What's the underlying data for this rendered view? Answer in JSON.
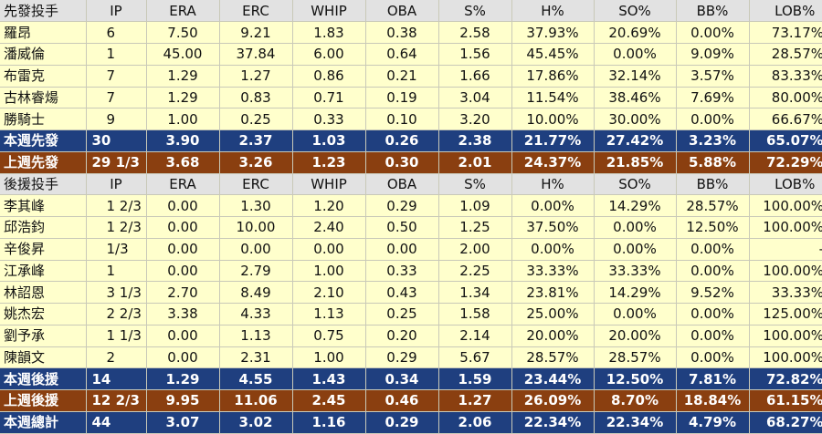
{
  "starters": {
    "headers": [
      "先發投手",
      "IP",
      "ERA",
      "ERC",
      "WHIP",
      "OBA",
      "S%",
      "H%",
      "SO%",
      "BB%",
      "LOB%"
    ],
    "rows": [
      [
        "羅昂",
        "6",
        "7.50",
        "9.21",
        "1.83",
        "0.38",
        "2.58",
        "37.93%",
        "20.69%",
        "0.00%",
        "73.17%"
      ],
      [
        "潘威倫",
        "1",
        "45.00",
        "37.84",
        "6.00",
        "0.64",
        "1.56",
        "45.45%",
        "0.00%",
        "9.09%",
        "28.57%"
      ],
      [
        "布雷克",
        "7",
        "1.29",
        "1.27",
        "0.86",
        "0.21",
        "1.66",
        "17.86%",
        "32.14%",
        "3.57%",
        "83.33%"
      ],
      [
        "古林睿煬",
        "7",
        "1.29",
        "0.83",
        "0.71",
        "0.19",
        "3.04",
        "11.54%",
        "38.46%",
        "7.69%",
        "80.00%"
      ],
      [
        "勝騎士",
        "9",
        "1.00",
        "0.25",
        "0.33",
        "0.10",
        "3.20",
        "10.00%",
        "30.00%",
        "0.00%",
        "66.67%"
      ]
    ],
    "this_week": [
      "本週先發",
      "30",
      "3.90",
      "2.37",
      "1.03",
      "0.26",
      "2.38",
      "21.77%",
      "27.42%",
      "3.23%",
      "65.07%"
    ],
    "last_week": [
      "上週先發",
      "29 1/3",
      "3.68",
      "3.26",
      "1.23",
      "0.30",
      "2.01",
      "24.37%",
      "21.85%",
      "5.88%",
      "72.29%"
    ]
  },
  "relievers": {
    "headers": [
      "後援投手",
      "IP",
      "ERA",
      "ERC",
      "WHIP",
      "OBA",
      "S%",
      "H%",
      "SO%",
      "BB%",
      "LOB%"
    ],
    "rows": [
      [
        "李其峰",
        "1 2/3",
        "0.00",
        "1.30",
        "1.20",
        "0.29",
        "1.09",
        "0.00%",
        "14.29%",
        "28.57%",
        "100.00%"
      ],
      [
        "邱浩鈞",
        "1 2/3",
        "0.00",
        "10.00",
        "2.40",
        "0.50",
        "1.25",
        "37.50%",
        "0.00%",
        "12.50%",
        "100.00%"
      ],
      [
        "辛俊昇",
        "1/3",
        "0.00",
        "0.00",
        "0.00",
        "0.00",
        "2.00",
        "0.00%",
        "0.00%",
        "0.00%",
        "-"
      ],
      [
        "江承峰",
        "1",
        "0.00",
        "2.79",
        "1.00",
        "0.33",
        "2.25",
        "33.33%",
        "33.33%",
        "0.00%",
        "100.00%"
      ],
      [
        "林詔恩",
        "3 1/3",
        "2.70",
        "8.49",
        "2.10",
        "0.43",
        "1.34",
        "23.81%",
        "14.29%",
        "9.52%",
        "33.33%"
      ],
      [
        "姚杰宏",
        "2 2/3",
        "3.38",
        "4.33",
        "1.13",
        "0.25",
        "1.58",
        "25.00%",
        "0.00%",
        "0.00%",
        "125.00%"
      ],
      [
        "劉予承",
        "1 1/3",
        "0.00",
        "1.13",
        "0.75",
        "0.20",
        "2.14",
        "20.00%",
        "20.00%",
        "0.00%",
        "100.00%"
      ],
      [
        "陳韻文",
        "2",
        "0.00",
        "2.31",
        "1.00",
        "0.29",
        "5.67",
        "28.57%",
        "28.57%",
        "0.00%",
        "100.00%"
      ]
    ],
    "this_week": [
      "本週後援",
      "14",
      "1.29",
      "4.55",
      "1.43",
      "0.34",
      "1.59",
      "23.44%",
      "12.50%",
      "7.81%",
      "72.82%"
    ],
    "last_week": [
      "上週後援",
      "12 2/3",
      "9.95",
      "11.06",
      "2.45",
      "0.46",
      "1.27",
      "26.09%",
      "8.70%",
      "18.84%",
      "61.15%"
    ]
  },
  "total": [
    "本週總計",
    "44",
    "3.07",
    "3.02",
    "1.16",
    "0.29",
    "2.06",
    "22.34%",
    "22.34%",
    "4.79%",
    "68.27%"
  ],
  "colors": {
    "header_bg": "#e2e2e2",
    "row_bg": "#ffffcc",
    "this_week_bg": "#1f3f7f",
    "last_week_bg": "#8a3f10"
  }
}
